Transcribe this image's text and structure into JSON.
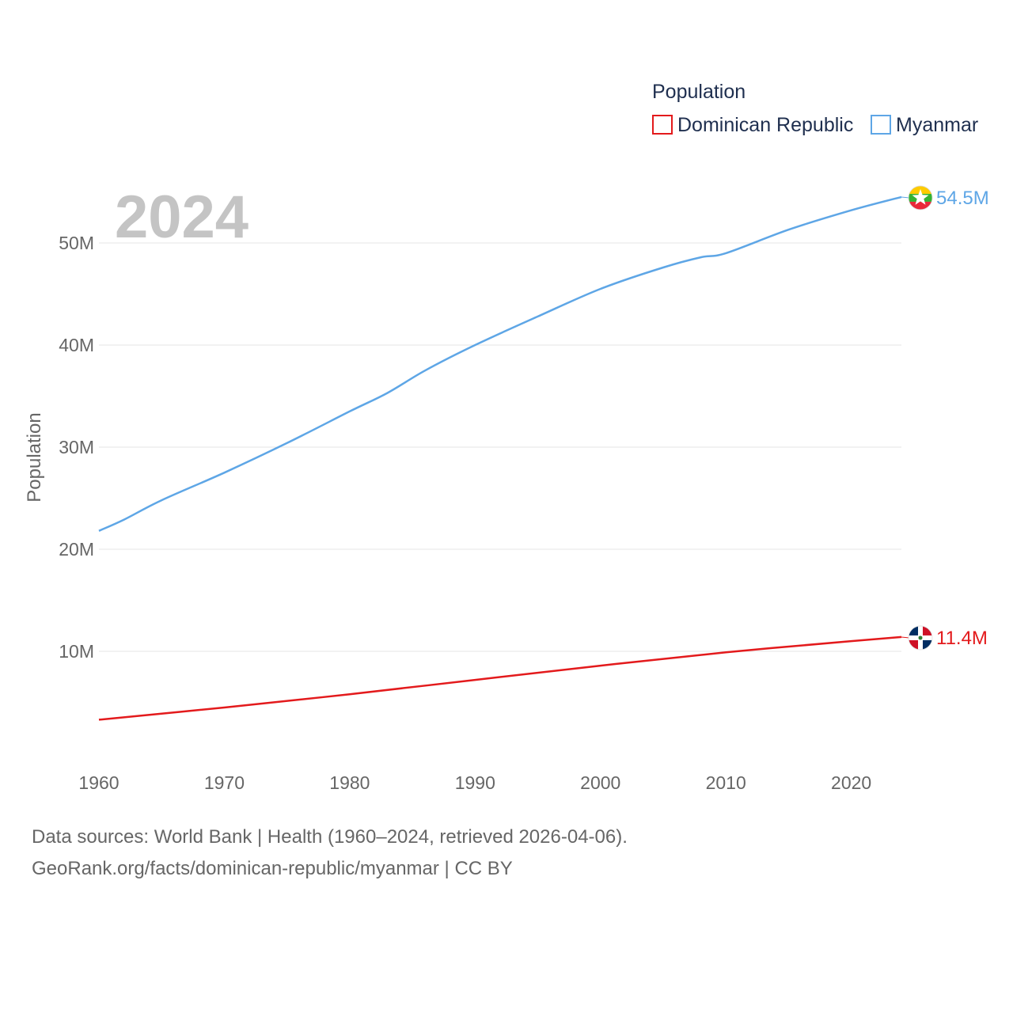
{
  "chart_data": {
    "type": "line",
    "year_label": "2024",
    "ylabel": "Population",
    "legend_title": "Population",
    "x_ticks": [
      "1960",
      "1970",
      "1980",
      "1990",
      "2000",
      "2010",
      "2020"
    ],
    "y_ticks": [
      "10M",
      "20M",
      "30M",
      "40M",
      "50M"
    ],
    "ylim": [
      0,
      56
    ],
    "xlim": [
      1960,
      2024
    ],
    "series": [
      {
        "name": "Dominican Republic",
        "color": "#e31a1c",
        "end_label": "11.4M",
        "flag": "dominican-republic-flag-icon",
        "x": [
          1960,
          1970,
          1980,
          1990,
          2000,
          2010,
          2020,
          2024
        ],
        "values": [
          3.3,
          4.5,
          5.8,
          7.2,
          8.6,
          9.9,
          11.0,
          11.4
        ]
      },
      {
        "name": "Myanmar",
        "color": "#5ea6e6",
        "end_label": "54.5M",
        "flag": "myanmar-flag-icon",
        "x": [
          1960,
          1962,
          1965,
          1970,
          1975,
          1980,
          1983,
          1986,
          1990,
          1995,
          2000,
          2005,
          2008,
          2010,
          2015,
          2020,
          2024
        ],
        "values": [
          21.8,
          22.9,
          24.8,
          27.5,
          30.4,
          33.5,
          35.3,
          37.5,
          40.0,
          42.8,
          45.5,
          47.6,
          48.6,
          49.0,
          51.3,
          53.2,
          54.5
        ]
      }
    ]
  },
  "footer": {
    "line1": "Data sources: World Bank | Health (1960–2024, retrieved 2026-04-06).",
    "line2": "GeoRank.org/facts/dominican-republic/myanmar | CC BY"
  }
}
